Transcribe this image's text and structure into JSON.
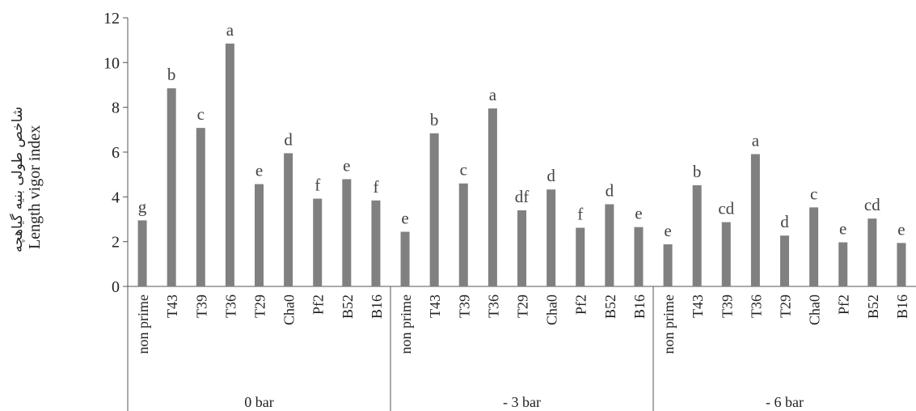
{
  "chart_data": {
    "type": "bar",
    "ylabel_fa": "شاخص طولی بنیه گیاهچه",
    "ylabel_en": "Length vigor index",
    "ylim": [
      0,
      12
    ],
    "yticks": [
      "0",
      "2",
      "4",
      "6",
      "8",
      "10",
      "12"
    ],
    "grid": false,
    "legend": "none",
    "bar_color": "#808080",
    "groups": [
      {
        "name": "0 bar",
        "categories": [
          "non prime",
          "T43",
          "T39",
          "T36",
          "T29",
          "Cha0",
          "Pf2",
          "B52",
          "B16"
        ],
        "values": [
          2.95,
          8.85,
          7.08,
          10.85,
          4.57,
          5.95,
          3.92,
          4.79,
          3.84
        ],
        "letters": [
          "g",
          "b",
          "c",
          "a",
          "e",
          "d",
          "f",
          "e",
          "f"
        ]
      },
      {
        "name": "- 3 bar",
        "categories": [
          "non prime",
          "T43",
          "T39",
          "T36",
          "T29",
          "Cha0",
          "Pf2",
          "B52",
          "B16"
        ],
        "values": [
          2.44,
          6.84,
          4.6,
          7.95,
          3.4,
          4.33,
          2.62,
          3.67,
          2.65
        ],
        "letters": [
          "e",
          "b",
          "c",
          "a",
          "df",
          "d",
          "f",
          "d",
          "e"
        ]
      },
      {
        "name": "- 6 bar",
        "categories": [
          "non prime",
          "T43",
          "T39",
          "T36",
          "T29",
          "Cha0",
          "Pf2",
          "B52",
          "B16"
        ],
        "values": [
          1.88,
          4.52,
          2.87,
          5.91,
          2.27,
          3.53,
          1.97,
          3.03,
          1.94
        ],
        "letters": [
          "e",
          "b",
          "cd",
          "a",
          "d",
          "c",
          "e",
          "cd",
          "e"
        ]
      }
    ]
  }
}
